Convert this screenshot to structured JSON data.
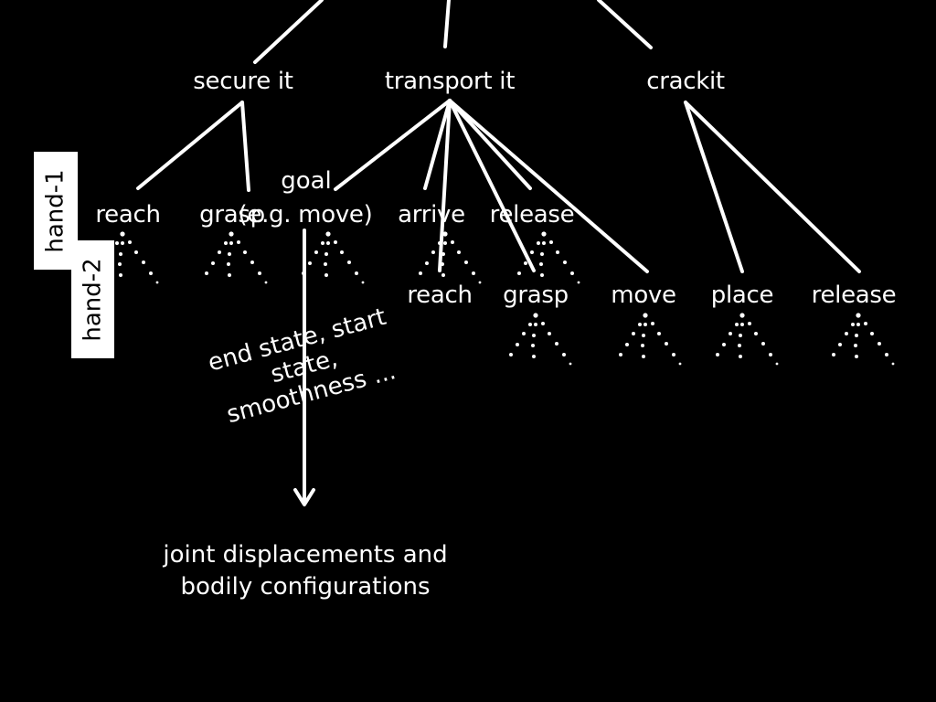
{
  "level1": {
    "secure": "secure it",
    "transport": "transport it",
    "crack": "crackit"
  },
  "hand1_tag": "hand-1",
  "hand2_tag": "hand-2",
  "hand1_actions": {
    "reach": "reach",
    "grasp": "grasp",
    "goal_label": "goal",
    "move": "(e.g. move)",
    "arrive": "arrive",
    "release": "release"
  },
  "hand2_actions": {
    "reach": "reach",
    "grasp": "grasp",
    "move": "move",
    "place": "place",
    "release": "release"
  },
  "goal_parameters": {
    "line1": "end state, start",
    "line2": "state,",
    "line3": "smoothness ..."
  },
  "outcome": {
    "line1": "joint displacements and",
    "line2": "bodily configurations"
  },
  "colors": {
    "background": "#000000",
    "foreground": "#ffffff"
  }
}
